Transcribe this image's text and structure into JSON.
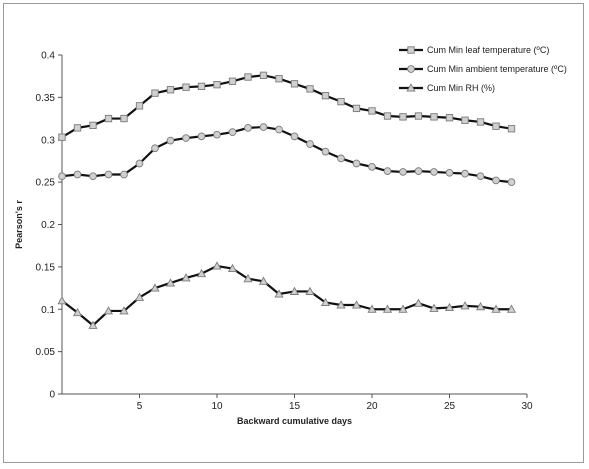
{
  "chart_data": {
    "type": "line",
    "title": "",
    "xlabel": "Backward cumulative days",
    "ylabel": "Pearson's r",
    "xlim": [
      0,
      30
    ],
    "ylim": [
      0,
      0.4
    ],
    "x_ticks": [
      5,
      10,
      15,
      20,
      25,
      30
    ],
    "y_ticks": [
      0,
      0.05,
      0.1,
      0.15,
      0.2,
      0.25,
      0.3,
      0.35,
      0.4
    ],
    "x_tick_labels": [
      "5",
      "10",
      "15",
      "20",
      "25",
      "30"
    ],
    "y_tick_labels": [
      "0",
      "0.05",
      "0.1",
      "0.15",
      "0.2",
      "0.25",
      "0.3",
      "0.35",
      "0.4"
    ],
    "grid": false,
    "legend_position": "top-right",
    "x": [
      0,
      1,
      2,
      3,
      4,
      5,
      6,
      7,
      8,
      9,
      10,
      11,
      12,
      13,
      14,
      15,
      16,
      17,
      18,
      19,
      20,
      21,
      22,
      23,
      24,
      25,
      26,
      27,
      28,
      29
    ],
    "series": [
      {
        "name": "Cum Min leaf temperature (ºC)",
        "marker": "square",
        "values": [
          0.303,
          0.314,
          0.317,
          0.325,
          0.325,
          0.34,
          0.355,
          0.359,
          0.362,
          0.363,
          0.365,
          0.369,
          0.374,
          0.376,
          0.372,
          0.366,
          0.36,
          0.352,
          0.345,
          0.337,
          0.334,
          0.328,
          0.327,
          0.328,
          0.327,
          0.326,
          0.323,
          0.321,
          0.316,
          0.313
        ]
      },
      {
        "name": "Cum Min ambient temperature (ºC)",
        "marker": "circle",
        "values": [
          0.257,
          0.259,
          0.257,
          0.259,
          0.259,
          0.272,
          0.29,
          0.299,
          0.302,
          0.304,
          0.306,
          0.309,
          0.314,
          0.315,
          0.312,
          0.304,
          0.295,
          0.286,
          0.278,
          0.272,
          0.268,
          0.263,
          0.262,
          0.263,
          0.262,
          0.261,
          0.26,
          0.257,
          0.252,
          0.25
        ]
      },
      {
        "name": "Cum Min RH (%)",
        "marker": "triangle",
        "values": [
          0.11,
          0.096,
          0.081,
          0.098,
          0.098,
          0.114,
          0.125,
          0.131,
          0.137,
          0.142,
          0.151,
          0.148,
          0.136,
          0.133,
          0.118,
          0.121,
          0.121,
          0.108,
          0.105,
          0.105,
          0.1,
          0.1,
          0.1,
          0.107,
          0.101,
          0.102,
          0.104,
          0.103,
          0.1,
          0.1
        ]
      }
    ],
    "colors": {
      "line": "#111111",
      "marker_fill": "#d0d0d0",
      "marker_stroke": "#7a7a7a",
      "frame": "#9a9a9a"
    }
  }
}
